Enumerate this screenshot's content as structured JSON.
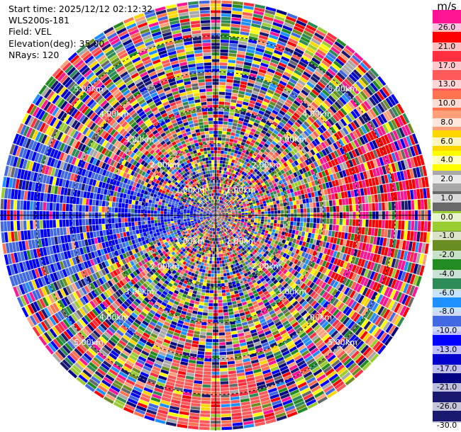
{
  "header": {
    "start_time": "Start time: 2025/12/12 02:12:32",
    "instrument": "WLS200s-181",
    "field": "Field: VEL",
    "elevation": "Elevation(deg): 35.00",
    "nrays": "NRays: 120"
  },
  "colorbar": {
    "unit": "m/s",
    "ticks": [
      "26.0",
      "21.0",
      "17.0",
      "13.0",
      "10.0",
      "8.0",
      "6.0",
      "4.0",
      "2.0",
      "1.0",
      "0.0",
      "-1.0",
      "-2.0",
      "-4.0",
      "-6.0",
      "-8.0",
      "-10.0",
      "-13.0",
      "-17.0",
      "-21.0",
      "-26.0",
      "-30.0"
    ],
    "colors": [
      "#ff1493",
      "#ff1493",
      "#ff0000",
      "#ff0000",
      "#ff2f3f",
      "#ff2f3f",
      "#ff5a5a",
      "#ff5a5a",
      "#ff7350",
      "#ff7350",
      "#ffa07a",
      "#ffa07a",
      "#ffd700",
      "#ffd700",
      "#ffff00",
      "#ffff00",
      "#a9a9a9",
      "#a9a9a9",
      "#696969",
      "#696969",
      "#9acd32",
      "#9acd32",
      "#6b8e23",
      "#6b8e23",
      "#228b22",
      "#228b22",
      "#2e8b57",
      "#2e8b57",
      "#1e90ff",
      "#1e90ff",
      "#4169e1",
      "#4169e1",
      "#0000ff",
      "#0000ff",
      "#0000cd",
      "#0000cd",
      "#000080",
      "#000080",
      "#191970",
      "#191970",
      "#191970"
    ]
  },
  "chart_data": {
    "type": "heatmap",
    "projection": "polar PPI",
    "field": "VEL",
    "units": "m/s",
    "elevation_deg": 35.0,
    "n_rays": 120,
    "range_rings_km": [
      1.0,
      2.0,
      3.0,
      4.0,
      5.0
    ],
    "ring_labels": [
      "1.00km",
      "2.00km",
      "3.00km",
      "4.00km",
      "5.00km"
    ],
    "vmin": -30.0,
    "vmax": 30.0,
    "dominant_regions": [
      {
        "direction": "west",
        "sign": "negative",
        "approx_value": -17
      },
      {
        "direction": "south",
        "sign": "positive",
        "approx_value": 21
      },
      {
        "direction": "east",
        "sign": "positive",
        "approx_value": 26
      }
    ]
  }
}
